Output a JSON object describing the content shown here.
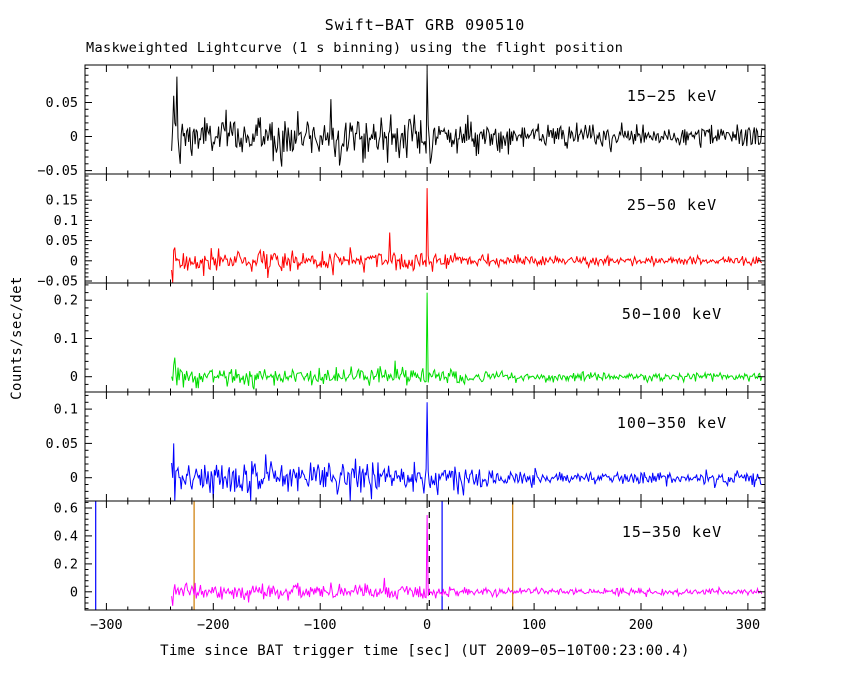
{
  "chart_data": {
    "type": "line",
    "title": "Swift−BAT GRB 090510",
    "subtitle": "Maskweighted Lightcurve (1 s binning) using the flight position",
    "xlabel": "Time since BAT trigger time [sec] (UT 2009−05−10T00:23:00.4)",
    "ylabel": "Counts/sec/det",
    "xlim": [
      -320,
      316
    ],
    "xticks": [
      -300,
      -200,
      -100,
      0,
      100,
      200,
      300
    ],
    "x_minor_step": 20,
    "data_start": -239,
    "data_end": 313,
    "bin_sec": 1,
    "grid": false,
    "background": "#ffffff",
    "panels": [
      {
        "label": "15−25 keV",
        "color": "#000000",
        "ylim": [
          -0.055,
          0.105
        ],
        "yticks": [
          -0.05,
          0,
          0.05
        ],
        "y_minor_step": 0.01,
        "noise": {
          "early": 0.016,
          "late": 0.008
        },
        "features": [
          {
            "t": -234,
            "value": 0.088
          },
          {
            "t": -231,
            "value": -0.04
          },
          {
            "t": -90,
            "value": 0.055
          },
          {
            "t": 0,
            "value": 0.095
          }
        ]
      },
      {
        "label": "25−50 keV",
        "color": "#ff0000",
        "ylim": [
          -0.055,
          0.215
        ],
        "yticks": [
          -0.05,
          0,
          0.05,
          0.1,
          0.15
        ],
        "y_minor_step": 0.01,
        "noise": {
          "early": 0.013,
          "late": 0.006
        },
        "features": [
          {
            "t": -238,
            "value": -0.08
          },
          {
            "t": -35,
            "value": 0.07
          },
          {
            "t": 0,
            "value": 0.18
          }
        ]
      },
      {
        "label": "50−100 keV",
        "color": "#00dd00",
        "ylim": [
          -0.04,
          0.245
        ],
        "yticks": [
          0,
          0.1,
          0.2
        ],
        "y_minor_step": 0.02,
        "noise": {
          "early": 0.012,
          "late": 0.006
        },
        "features": [
          {
            "t": -236,
            "value": 0.05
          },
          {
            "t": 0,
            "value": 0.22
          }
        ]
      },
      {
        "label": "100−350 keV",
        "color": "#0000ff",
        "ylim": [
          -0.034,
          0.125
        ],
        "yticks": [
          0,
          0.05,
          0.1
        ],
        "y_minor_step": 0.01,
        "noise": {
          "early": 0.012,
          "late": 0.005
        },
        "features": [
          {
            "t": -237,
            "value": 0.05
          },
          {
            "t": 0,
            "value": 0.11
          }
        ]
      },
      {
        "label": "15−350 keV",
        "color": "#ff00ff",
        "ylim": [
          -0.13,
          0.65
        ],
        "yticks": [
          0,
          0.2,
          0.4,
          0.6
        ],
        "y_minor_step": 0.04,
        "noise": {
          "early": 0.028,
          "late": 0.013
        },
        "features": [
          {
            "t": -238,
            "value": -0.1
          },
          {
            "t": -40,
            "value": 0.1
          },
          {
            "t": 0,
            "value": 0.55
          }
        ],
        "markers": [
          {
            "x": -310,
            "color": "#0000ff",
            "style": "solid"
          },
          {
            "x": -218,
            "color": "#cc7a00",
            "style": "solid"
          },
          {
            "x": 2,
            "color": "#000000",
            "style": "dashed"
          },
          {
            "x": 14,
            "color": "#0000ff",
            "style": "solid"
          },
          {
            "x": 80,
            "color": "#cc7a00",
            "style": "solid"
          }
        ]
      }
    ]
  }
}
